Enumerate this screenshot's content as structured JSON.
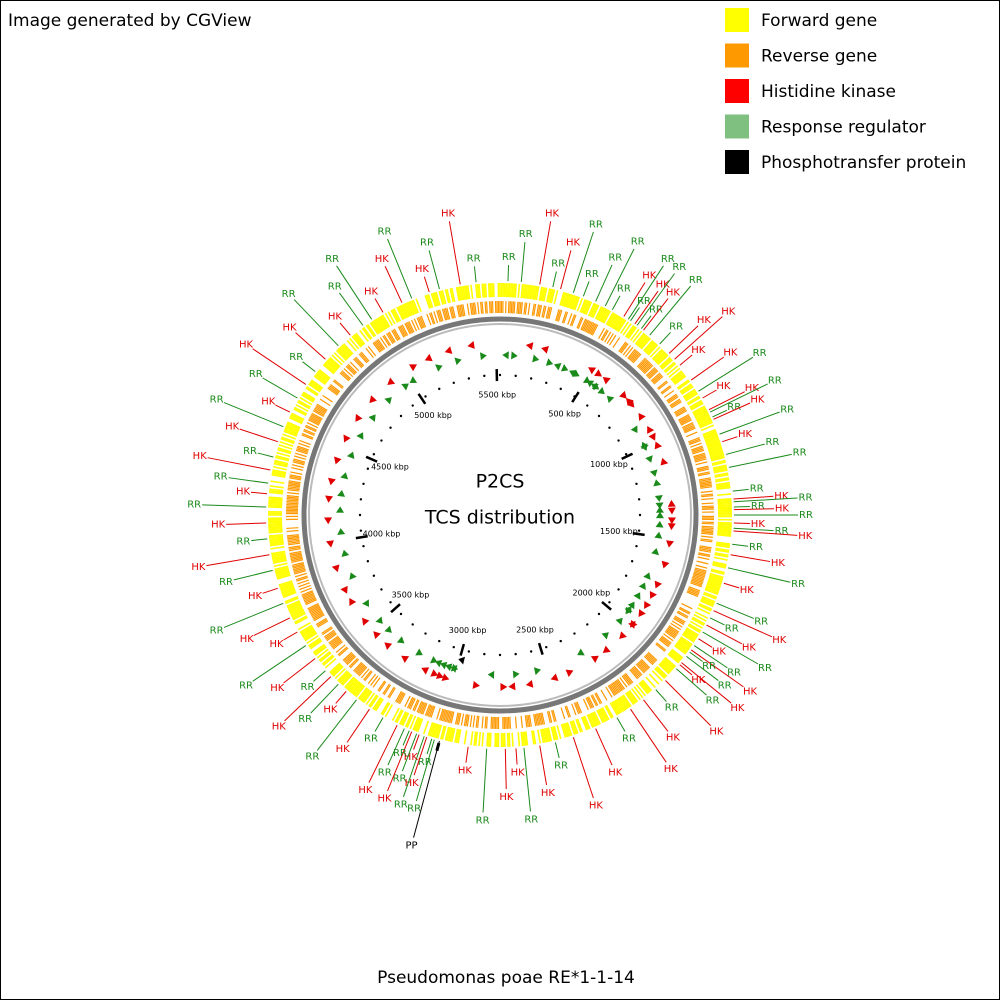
{
  "header": {
    "title": "Image generated by CGView"
  },
  "legend": [
    {
      "label": "Forward gene",
      "color": "#ffff00"
    },
    {
      "label": "Reverse gene",
      "color": "#ff9900"
    },
    {
      "label": "Histidine kinase",
      "color": "#ff0000"
    },
    {
      "label": "Response regulator",
      "color": "#7fbf7f"
    },
    {
      "label": "Phosphotransfer protein",
      "color": "#000000"
    }
  ],
  "center": {
    "title": "P2CS",
    "subtitle": "TCS distribution"
  },
  "footer": {
    "organism": "Pseudomonas poae RE*1-1-14"
  },
  "map": {
    "xlim": [
      0,
      5520
    ],
    "xticks": [
      {
        "value": 500,
        "label": "500 kbp"
      },
      {
        "value": 1000,
        "label": "1000 kbp"
      },
      {
        "value": 1500,
        "label": "1500 kbp"
      },
      {
        "value": 2000,
        "label": "2000 kbp"
      },
      {
        "value": 2500,
        "label": "2500 kbp"
      },
      {
        "value": 3000,
        "label": "3000 kbp"
      },
      {
        "value": 3500,
        "label": "3500 kbp"
      },
      {
        "value": 4000,
        "label": "4000 kbp"
      },
      {
        "value": 4500,
        "label": "4500 kbp"
      },
      {
        "value": 5000,
        "label": "5000 kbp"
      },
      {
        "value": 5500,
        "label": "5500 kbp"
      }
    ],
    "label_colors": {
      "HK": "#e00000",
      "RR": "#1a8a1a",
      "PP": "#000000"
    },
    "features": {
      "labels": [
        "RR",
        "RR",
        "HK",
        "RR",
        "HK",
        "RR",
        "RR",
        "RR",
        "RR",
        "RR",
        "HK",
        "RR",
        "RR",
        "HK",
        "RR",
        "RR",
        "HK",
        "RR",
        "RR",
        "HK",
        "HK",
        "HK",
        "HK",
        "RR",
        "HK",
        "HK",
        "RR",
        "RR",
        "HK",
        "RR",
        "HK",
        "RR",
        "RR",
        "RR",
        "HK",
        "RR",
        "RR",
        "HK",
        "RR",
        "HK",
        "RR",
        "HK",
        "RR",
        "HK",
        "RR",
        "HK",
        "RR",
        "HK",
        "RR",
        "HK",
        "RR",
        "HK",
        "RR",
        "HK",
        "RR",
        "RR",
        "HK",
        "HK",
        "RR",
        "HK",
        "RR",
        "HK",
        "HK",
        "RR",
        "HK",
        "HK",
        "RR",
        "HK",
        "RR",
        "HK",
        "HK",
        "RR",
        "HK",
        "PP",
        "RR",
        "RR",
        "HK",
        "RR",
        "HK",
        "RR",
        "HK",
        "RR",
        "RR",
        "HK",
        "RR",
        "HK",
        "RR",
        "HK",
        "RR",
        "HK",
        "RR",
        "HK",
        "RR",
        "HK",
        "HK",
        "RR",
        "HK",
        "RR",
        "HK",
        "RR",
        "HK",
        "RR",
        "HK",
        "RR",
        "HK",
        "RR",
        "HK",
        "RR",
        "HK",
        "RR",
        "HK",
        "RR",
        "HK",
        "RR",
        "HK",
        "RR",
        "RR",
        "HK",
        "HK",
        "RR",
        "HK",
        "RR",
        "HK",
        "RR"
      ],
      "kbp": [
        30,
        80,
        150,
        200,
        230,
        280,
        320,
        370,
        410,
        440,
        490,
        510,
        520,
        540,
        550,
        570,
        580,
        610,
        660,
        710,
        740,
        770,
        840,
        890,
        920,
        970,
        980,
        1000,
        1010,
        1070,
        1100,
        1150,
        1200,
        1290,
        1320,
        1330,
        1350,
        1360,
        1380,
        1410,
        1430,
        1440,
        1490,
        1530,
        1580,
        1640,
        1720,
        1750,
        1780,
        1810,
        1840,
        1870,
        1900,
        1920,
        1930,
        1950,
        1980,
        1990,
        2010,
        2070,
        2120,
        2180,
        2240,
        2300,
        2390,
        2480,
        2550,
        2610,
        2670,
        2700,
        2740,
        2810,
        2880,
        2990,
        3010,
        3020,
        3040,
        3050,
        3070,
        3080,
        3100,
        3110,
        3130,
        3160,
        3220,
        3280,
        3340,
        3390,
        3430,
        3470,
        3500,
        3560,
        3620,
        3680,
        3740,
        3800,
        3860,
        3930,
        3990,
        4050,
        4110,
        4170,
        4220,
        4260,
        4310,
        4360,
        4420,
        4480,
        4540,
        4600,
        4660,
        4720,
        4780,
        4850,
        4910,
        4970,
        5010,
        5060,
        5140,
        5180,
        5250,
        5290,
        5370,
        5430
      ]
    }
  }
}
